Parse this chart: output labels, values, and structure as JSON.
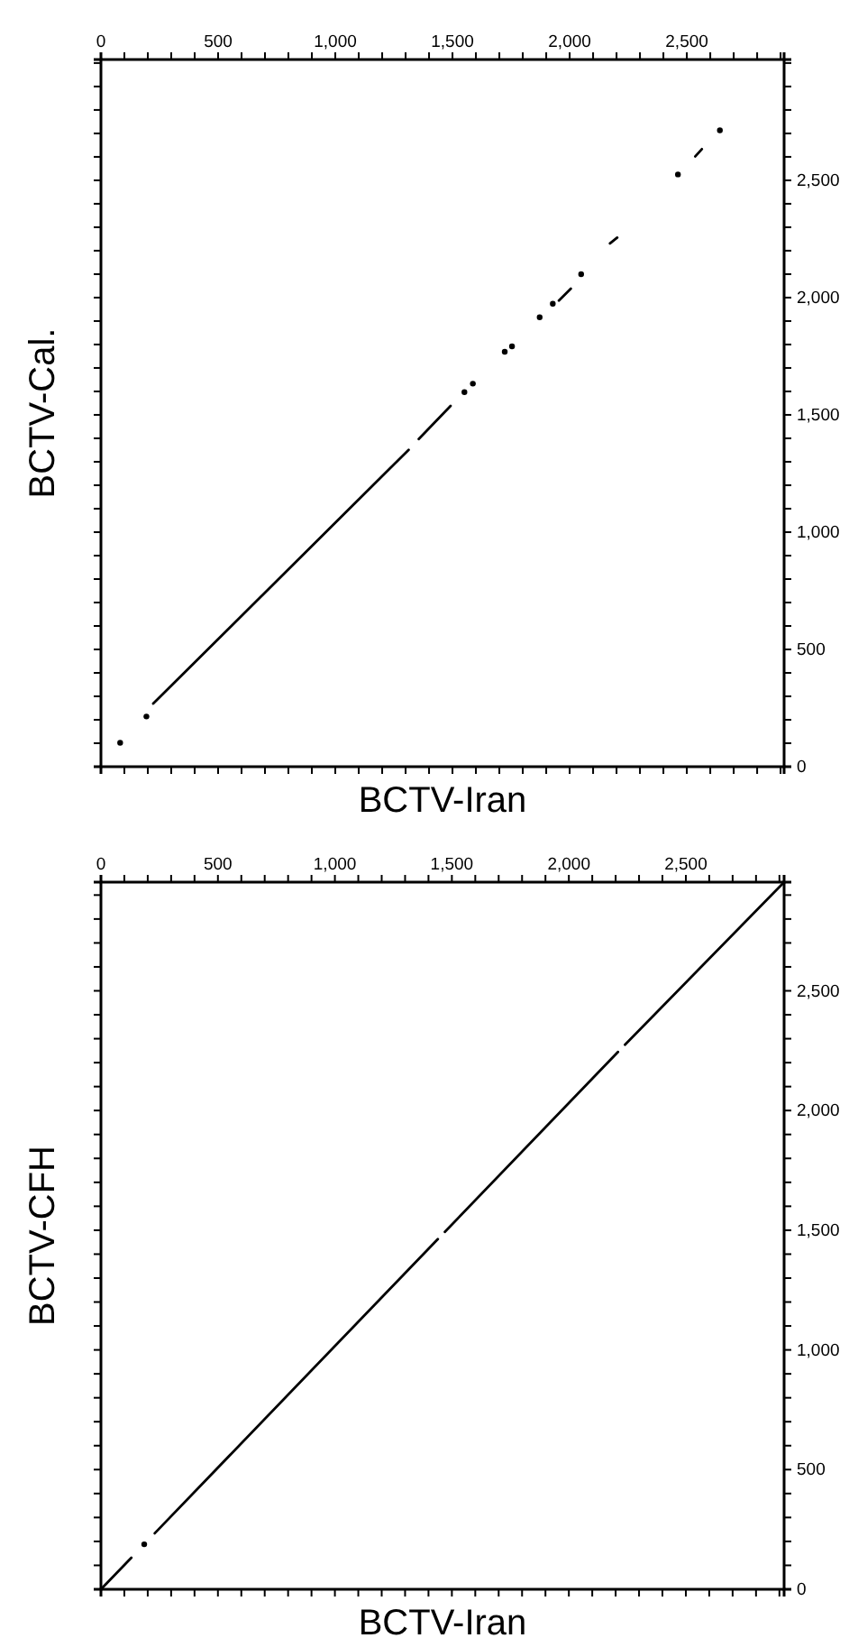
{
  "chart_data": [
    {
      "type": "line",
      "xlabel": "BCTV-Iran",
      "ylabel": "BCTV-Cal.",
      "xlim": [
        0,
        2915
      ],
      "ylim": [
        0,
        3015
      ],
      "xticks": [
        {
          "value": 0,
          "label": "0"
        },
        {
          "value": 100,
          "label": null
        },
        {
          "value": 200,
          "label": null
        },
        {
          "value": 300,
          "label": null
        },
        {
          "value": 400,
          "label": null
        },
        {
          "value": 500,
          "label": "500"
        },
        {
          "value": 600,
          "label": null
        },
        {
          "value": 700,
          "label": null
        },
        {
          "value": 800,
          "label": null
        },
        {
          "value": 900,
          "label": null
        },
        {
          "value": 1000,
          "label": "1,000"
        },
        {
          "value": 1100,
          "label": null
        },
        {
          "value": 1200,
          "label": null
        },
        {
          "value": 1300,
          "label": null
        },
        {
          "value": 1400,
          "label": null
        },
        {
          "value": 1500,
          "label": "1,500"
        },
        {
          "value": 1600,
          "label": null
        },
        {
          "value": 1700,
          "label": null
        },
        {
          "value": 1800,
          "label": null
        },
        {
          "value": 1900,
          "label": null
        },
        {
          "value": 2000,
          "label": "2,000"
        },
        {
          "value": 2100,
          "label": null
        },
        {
          "value": 2200,
          "label": null
        },
        {
          "value": 2300,
          "label": null
        },
        {
          "value": 2400,
          "label": null
        },
        {
          "value": 2500,
          "label": "2,500"
        },
        {
          "value": 2600,
          "label": null
        },
        {
          "value": 2700,
          "label": null
        },
        {
          "value": 2800,
          "label": null
        },
        {
          "value": 2900,
          "label": null
        }
      ],
      "yticks": [
        {
          "value": 0,
          "label": "0"
        },
        {
          "value": 100,
          "label": null
        },
        {
          "value": 200,
          "label": null
        },
        {
          "value": 300,
          "label": null
        },
        {
          "value": 400,
          "label": null
        },
        {
          "value": 500,
          "label": "500"
        },
        {
          "value": 600,
          "label": null
        },
        {
          "value": 700,
          "label": null
        },
        {
          "value": 800,
          "label": null
        },
        {
          "value": 900,
          "label": null
        },
        {
          "value": 1000,
          "label": "1,000"
        },
        {
          "value": 1100,
          "label": null
        },
        {
          "value": 1200,
          "label": null
        },
        {
          "value": 1300,
          "label": null
        },
        {
          "value": 1400,
          "label": null
        },
        {
          "value": 1500,
          "label": "1,500"
        },
        {
          "value": 1600,
          "label": null
        },
        {
          "value": 1700,
          "label": null
        },
        {
          "value": 1800,
          "label": null
        },
        {
          "value": 1900,
          "label": null
        },
        {
          "value": 2000,
          "label": "2,000"
        },
        {
          "value": 2100,
          "label": null
        },
        {
          "value": 2200,
          "label": null
        },
        {
          "value": 2300,
          "label": null
        },
        {
          "value": 2400,
          "label": null
        },
        {
          "value": 2500,
          "label": "2,500"
        },
        {
          "value": 2600,
          "label": null
        },
        {
          "value": 2700,
          "label": null
        },
        {
          "value": 2800,
          "label": null
        },
        {
          "value": 2900,
          "label": null
        },
        {
          "value": 3000,
          "label": null
        }
      ],
      "series": [
        {
          "color": "#000000",
          "x": [
            223,
            1313,
            null,
            1356,
            1492,
            null,
            1954,
            2005,
            null,
            2172,
            2203,
            null,
            2536,
            2564
          ],
          "values": [
            269,
            1351,
            null,
            1397,
            1538,
            null,
            1987,
            2038,
            null,
            2231,
            2256,
            null,
            2602,
            2633
          ]
        },
        {
          "type": "scatter",
          "marker": "circle",
          "color": "#000000",
          "x": [
            82,
            194,
            1551,
            1587,
            1723,
            1754,
            1872,
            1928,
            2049,
            2462,
            2641
          ],
          "values": [
            102,
            214,
            1597,
            1633,
            1769,
            1792,
            1916,
            1974,
            2100,
            2525,
            2713
          ]
        }
      ]
    },
    {
      "type": "line",
      "xlabel": "BCTV-Iran",
      "ylabel": "BCTV-CFH",
      "xlim": [
        0,
        2920
      ],
      "ylim": [
        0,
        2954
      ],
      "xticks": [
        0,
        {
          "value": 100,
          "label": null
        },
        {
          "value": 200,
          "label": null
        },
        {
          "value": 300,
          "label": null
        },
        {
          "value": 400,
          "label": null
        },
        500,
        {
          "value": 600,
          "label": null
        },
        {
          "value": 700,
          "label": null
        },
        {
          "value": 800,
          "label": null
        },
        {
          "value": 900,
          "label": null
        },
        {
          "value": 1000,
          "label": "1,000"
        },
        {
          "value": 1100,
          "label": null
        },
        {
          "value": 1200,
          "label": null
        },
        {
          "value": 1300,
          "label": null
        },
        {
          "value": 1400,
          "label": null
        },
        {
          "value": 1500,
          "label": "1,500"
        },
        {
          "value": 1600,
          "label": null
        },
        {
          "value": 1700,
          "label": null
        },
        {
          "value": 1800,
          "label": null
        },
        {
          "value": 1900,
          "label": null
        },
        {
          "value": 2000,
          "label": "2,000"
        },
        {
          "value": 2100,
          "label": null
        },
        {
          "value": 2200,
          "label": null
        },
        {
          "value": 2300,
          "label": null
        },
        {
          "value": 2400,
          "label": null
        },
        {
          "value": 2500,
          "label": "2,500"
        },
        {
          "value": 2600,
          "label": null
        },
        {
          "value": 2700,
          "label": null
        },
        {
          "value": 2800,
          "label": null
        },
        {
          "value": 2900,
          "label": null
        }
      ],
      "yticks": [
        0,
        {
          "value": 100,
          "label": null
        },
        {
          "value": 200,
          "label": null
        },
        {
          "value": 300,
          "label": null
        },
        {
          "value": 400,
          "label": null
        },
        500,
        {
          "value": 600,
          "label": null
        },
        {
          "value": 700,
          "label": null
        },
        {
          "value": 800,
          "label": null
        },
        {
          "value": 900,
          "label": null
        },
        {
          "value": 1000,
          "label": "1,000"
        },
        {
          "value": 1100,
          "label": null
        },
        {
          "value": 1200,
          "label": null
        },
        {
          "value": 1300,
          "label": null
        },
        {
          "value": 1400,
          "label": null
        },
        {
          "value": 1500,
          "label": "1,500"
        },
        {
          "value": 1600,
          "label": null
        },
        {
          "value": 1700,
          "label": null
        },
        {
          "value": 1800,
          "label": null
        },
        {
          "value": 1900,
          "label": null
        },
        {
          "value": 2000,
          "label": "2,000"
        },
        {
          "value": 2100,
          "label": null
        },
        {
          "value": 2200,
          "label": null
        },
        {
          "value": 2300,
          "label": null
        },
        {
          "value": 2400,
          "label": null
        },
        {
          "value": 2500,
          "label": "2,500"
        },
        {
          "value": 2600,
          "label": null
        },
        {
          "value": 2700,
          "label": null
        },
        {
          "value": 2800,
          "label": null
        },
        {
          "value": 2900,
          "label": null
        }
      ],
      "series": [
        {
          "color": "#000000",
          "x": [
            0,
            130,
            null,
            230,
            1440,
            null,
            1470,
            2210,
            null,
            2240,
            2920
          ],
          "values": [
            0,
            132,
            null,
            234,
            1463,
            null,
            1493,
            2245,
            null,
            2275,
            2954
          ]
        },
        {
          "type": "scatter",
          "marker": "circle",
          "color": "#000000",
          "x": [
            185
          ],
          "values": [
            188
          ]
        }
      ]
    }
  ]
}
